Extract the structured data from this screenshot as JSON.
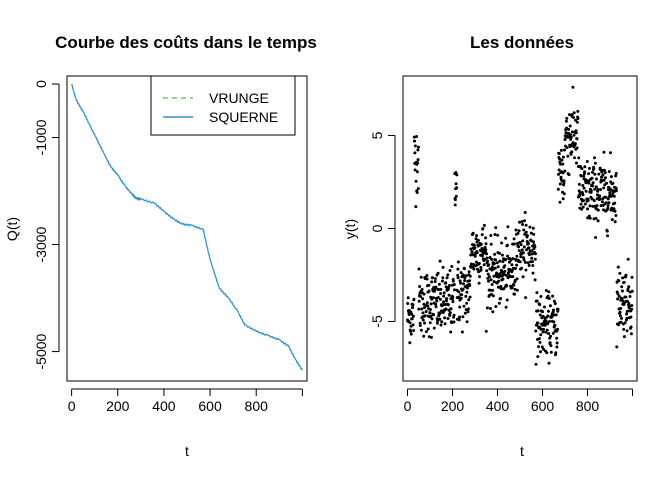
{
  "chart_data": [
    {
      "type": "line",
      "title": "Courbe des coûts dans le temps",
      "xlabel": "t",
      "ylabel": "Q(t)",
      "xlim": [
        -20,
        1020
      ],
      "ylim": [
        -5550,
        150
      ],
      "xticks": [
        0,
        200,
        400,
        600,
        800
      ],
      "yticks": [
        0,
        -1000,
        -3000,
        -5000
      ],
      "grid": false,
      "legend_position": "top-right",
      "series": [
        {
          "name": "VRUNGE",
          "color": "#7cc46a",
          "dash": true,
          "x": [
            0,
            20,
            50,
            80,
            110,
            140,
            170,
            200,
            230,
            260,
            280,
            300,
            360,
            400,
            440,
            480,
            520,
            570,
            600,
            640,
            680,
            720,
            750,
            800,
            850,
            900,
            940,
            970,
            1000
          ],
          "y": [
            0,
            -300,
            -520,
            -780,
            -1040,
            -1300,
            -1550,
            -1700,
            -1900,
            -2050,
            -2140,
            -2150,
            -2230,
            -2380,
            -2520,
            -2620,
            -2640,
            -2720,
            -3280,
            -3820,
            -4000,
            -4250,
            -4500,
            -4620,
            -4700,
            -4780,
            -4900,
            -5150,
            -5350
          ]
        },
        {
          "name": "SQUERNE",
          "color": "#2f8fd6",
          "dash": false,
          "x": [
            0,
            20,
            50,
            80,
            110,
            140,
            170,
            200,
            230,
            260,
            280,
            300,
            360,
            400,
            440,
            480,
            520,
            570,
            600,
            640,
            680,
            720,
            750,
            800,
            850,
            900,
            940,
            970,
            1000
          ],
          "y": [
            0,
            -300,
            -520,
            -780,
            -1040,
            -1300,
            -1550,
            -1700,
            -1900,
            -2050,
            -2140,
            -2150,
            -2230,
            -2380,
            -2520,
            -2620,
            -2640,
            -2720,
            -3280,
            -3820,
            -4000,
            -4250,
            -4500,
            -4620,
            -4700,
            -4780,
            -4900,
            -5150,
            -5350
          ]
        }
      ]
    },
    {
      "type": "scatter",
      "title": "Les données",
      "xlabel": "t",
      "ylabel": "y(t)",
      "xlim": [
        -20,
        1020
      ],
      "ylim": [
        -8.2,
        8.2
      ],
      "xticks": [
        0,
        200,
        400,
        600,
        800
      ],
      "yticks": [
        -5,
        0,
        5
      ],
      "grid": false,
      "color": "#000000",
      "segments": [
        {
          "from": 0,
          "to": 30,
          "mean": -4.7,
          "sd": 0.7
        },
        {
          "from": 30,
          "to": 50,
          "mean": 3.8,
          "sd": 1.0
        },
        {
          "from": 50,
          "to": 210,
          "mean": -4.0,
          "sd": 0.9
        },
        {
          "from": 210,
          "to": 220,
          "mean": 2.6,
          "sd": 0.7
        },
        {
          "from": 220,
          "to": 280,
          "mean": -3.5,
          "sd": 0.9
        },
        {
          "from": 280,
          "to": 350,
          "mean": -1.2,
          "sd": 0.8
        },
        {
          "from": 350,
          "to": 480,
          "mean": -2.4,
          "sd": 0.9
        },
        {
          "from": 480,
          "to": 570,
          "mean": -1.0,
          "sd": 0.8
        },
        {
          "from": 570,
          "to": 670,
          "mean": -5.2,
          "sd": 0.8
        },
        {
          "from": 670,
          "to": 700,
          "mean": 3.0,
          "sd": 1.0
        },
        {
          "from": 700,
          "to": 760,
          "mean": 5.0,
          "sd": 1.0
        },
        {
          "from": 760,
          "to": 930,
          "mean": 1.9,
          "sd": 0.9
        },
        {
          "from": 930,
          "to": 1000,
          "mean": -3.8,
          "sd": 0.9
        }
      ]
    }
  ]
}
